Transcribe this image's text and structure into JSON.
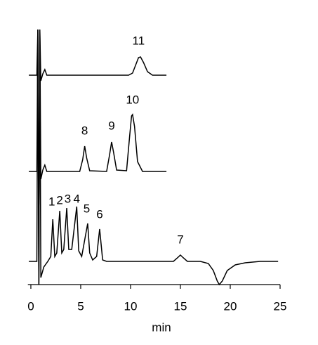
{
  "chart_data": {
    "type": "line",
    "x_label": "min",
    "xlim": [
      -0.3,
      25
    ],
    "xticks": [
      0,
      5,
      10,
      15,
      20,
      25
    ],
    "ylim": [
      0,
      400
    ],
    "series": [
      {
        "color": "#000000",
        "x": [
          -0.2,
          0.6,
          0.7,
          0.8,
          0.9,
          1.0,
          1.2,
          1.4,
          1.6,
          2,
          9.8,
          10.2,
          10.5,
          10.8,
          11.0,
          11.3,
          11.7,
          12.2,
          13.6
        ],
        "values": [
          298,
          298,
          363,
          0,
          363,
          290,
          300,
          306,
          298,
          298,
          298,
          301,
          312,
          323,
          324,
          316,
          303,
          298,
          298
        ]
      },
      {
        "color": "#000000",
        "x": [
          -0.2,
          0.6,
          0.7,
          0.8,
          0.9,
          1.0,
          1.2,
          1.4,
          1.6,
          2,
          4.9,
          5.2,
          5.4,
          5.6,
          5.9,
          7.6,
          7.9,
          8.1,
          8.3,
          8.6,
          9.6,
          9.9,
          10.1,
          10.2,
          10.4,
          10.7,
          11.2,
          13.6
        ],
        "values": [
          161,
          161,
          363,
          0,
          363,
          150,
          163,
          170,
          161,
          161,
          161,
          178,
          197,
          180,
          162,
          161,
          185,
          203,
          188,
          163,
          162,
          210,
          240,
          242,
          225,
          175,
          161,
          161
        ]
      },
      {
        "color": "#000000",
        "x": [
          -0.2,
          0.6,
          0.7,
          0.8,
          0.9,
          1.0,
          1.3,
          1.7,
          2.0,
          2.2,
          2.4,
          2.6,
          2.9,
          3.1,
          3.3,
          3.6,
          3.8,
          4.1,
          4.6,
          4.8,
          5.1,
          5.7,
          5.9,
          6.2,
          6.6,
          6.9,
          7.2,
          7.6,
          14.3,
          14.7,
          15.0,
          15.3,
          15.7,
          17.0,
          17.8,
          18.3,
          18.7,
          18.9,
          19.2,
          19.7,
          20.5,
          21.5,
          23,
          24.8
        ],
        "values": [
          33,
          33,
          363,
          0,
          363,
          10,
          25,
          33,
          40,
          93,
          40,
          45,
          105,
          45,
          50,
          109,
          50,
          50,
          111,
          48,
          40,
          87,
          45,
          35,
          40,
          79,
          35,
          33,
          33,
          38,
          42,
          38,
          33,
          33,
          30,
          20,
          5,
          0,
          5,
          20,
          28,
          31,
          33,
          33
        ]
      }
    ],
    "annotations": [
      {
        "text": "11",
        "x": 10.8,
        "y": 346
      },
      {
        "text": "10",
        "x": 10.2,
        "y": 262
      },
      {
        "text": "9",
        "x": 8.1,
        "y": 225
      },
      {
        "text": "8",
        "x": 5.4,
        "y": 218
      },
      {
        "text": "1",
        "x": 2.1,
        "y": 117
      },
      {
        "text": "2",
        "x": 2.9,
        "y": 119
      },
      {
        "text": "3",
        "x": 3.7,
        "y": 121
      },
      {
        "text": "4",
        "x": 4.6,
        "y": 121
      },
      {
        "text": "5",
        "x": 5.6,
        "y": 107
      },
      {
        "text": "6",
        "x": 6.9,
        "y": 99
      },
      {
        "text": "7",
        "x": 15.0,
        "y": 63
      }
    ]
  }
}
